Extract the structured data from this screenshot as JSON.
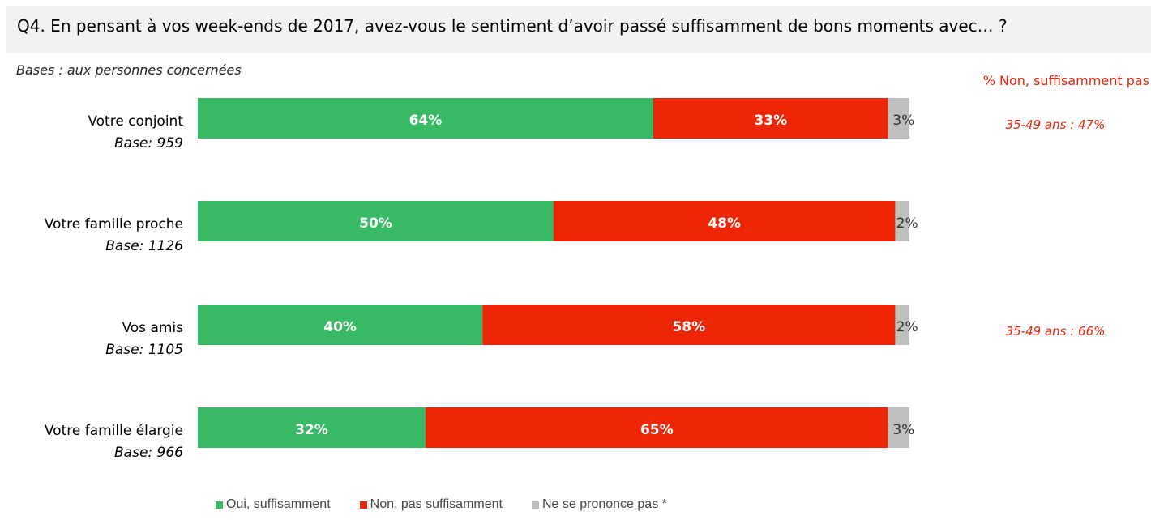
{
  "header": {
    "question": "Q4. En pensant à vos week-ends de 2017, avez-vous le sentiment d’avoir passé suffisamment de bons moments avec… ?",
    "bases_note": "Bases : aux personnes concernées",
    "side_title": "% Non, suffisamment pas"
  },
  "colors": {
    "oui": "#38b964",
    "non": "#ee2608",
    "nsp": "#bfbfbf",
    "side_text": "#e8230a"
  },
  "legend": [
    {
      "label": "Oui, suffisamment",
      "color": "#38b964"
    },
    {
      "label": "Non, pas suffisamment",
      "color": "#ee2608"
    },
    {
      "label": "Ne se prononce pas *",
      "color": "#bfbfbf"
    }
  ],
  "chart_data": {
    "type": "bar",
    "orientation": "horizontal",
    "stacked": true,
    "unit": "%",
    "categories": [
      "Votre conjoint",
      "Votre famille proche",
      "Vos amis",
      "Votre famille élargie"
    ],
    "bases": [
      "Base: 959",
      "Base: 1126",
      "Base: 1105",
      "Base: 966"
    ],
    "series": [
      {
        "name": "Oui, suffisamment",
        "values": [
          64,
          50,
          40,
          32
        ]
      },
      {
        "name": "Non, pas suffisamment",
        "values": [
          33,
          48,
          58,
          65
        ]
      },
      {
        "name": "Ne se prononce pas *",
        "values": [
          3,
          2,
          2,
          3
        ]
      }
    ],
    "side_notes": [
      "35-49 ans : 47%",
      "",
      "35-49 ans : 66%",
      ""
    ],
    "xlim": [
      0,
      100
    ],
    "legend_position": "bottom"
  }
}
